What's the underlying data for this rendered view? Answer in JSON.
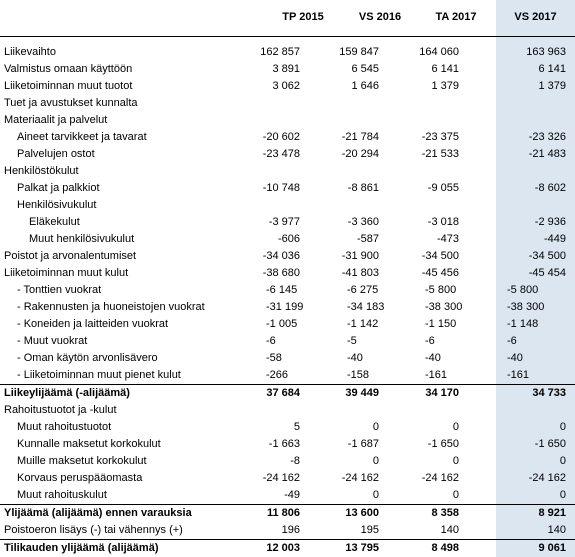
{
  "header": {
    "columns": [
      "TP 2015",
      "VS 2016",
      "TA 2017",
      "VS 2017"
    ]
  },
  "rows": [
    {
      "label": "Liikevaihto",
      "indent": 0,
      "bold": false,
      "values": [
        "162 857",
        "159 847",
        "164 060",
        "163 963"
      ]
    },
    {
      "label": "Valmistus omaan käyttöön",
      "indent": 0,
      "bold": false,
      "values": [
        "3 891",
        "6 545",
        "6 141",
        "6 141"
      ]
    },
    {
      "label": "Liiketoiminnan muut tuotot",
      "indent": 0,
      "bold": false,
      "values": [
        "3 062",
        "1 646",
        "1 379",
        "1 379"
      ]
    },
    {
      "label": "Tuet ja avustukset kunnalta",
      "indent": 0,
      "bold": false,
      "values": [
        "",
        "",
        "",
        ""
      ]
    },
    {
      "label": "Materiaalit ja palvelut",
      "indent": 0,
      "bold": false,
      "values": [
        "",
        "",
        "",
        ""
      ]
    },
    {
      "label": "Aineet tarvikkeet ja tavarat",
      "indent": 1,
      "bold": false,
      "values": [
        "-20 602",
        "-21 784",
        "-23 375",
        "-23 326"
      ]
    },
    {
      "label": "Palvelujen ostot",
      "indent": 1,
      "bold": false,
      "values": [
        "-23 478",
        "-20 294",
        "-21 533",
        "-21 483"
      ]
    },
    {
      "label": "Henkilöstökulut",
      "indent": 0,
      "bold": false,
      "values": [
        "",
        "",
        "",
        ""
      ]
    },
    {
      "label": "Palkat ja palkkiot",
      "indent": 1,
      "bold": false,
      "values": [
        "-10 748",
        "-8 861",
        "-9 055",
        "-8 602"
      ]
    },
    {
      "label": "Henkilösivukulut",
      "indent": 1,
      "bold": false,
      "values": [
        "",
        "",
        "",
        ""
      ]
    },
    {
      "label": "Eläkekulut",
      "indent": 2,
      "bold": false,
      "values": [
        "-3 977",
        "-3 360",
        "-3 018",
        "-2 936"
      ]
    },
    {
      "label": "Muut henkilösivukulut",
      "indent": 2,
      "bold": false,
      "values": [
        "-606",
        "-587",
        "-473",
        "-449"
      ]
    },
    {
      "label": "Poistot ja arvonalentumiset",
      "indent": 0,
      "bold": false,
      "values": [
        "-34 036",
        "-31 900",
        "-34 500",
        "-34 500"
      ]
    },
    {
      "label": "Liiketoiminnan muut kulut",
      "indent": 0,
      "bold": false,
      "values": [
        "-38 680",
        "-41 803",
        "-45 456",
        "-45 454"
      ]
    },
    {
      "label": "- Tonttien vuokrat",
      "indent": 1,
      "bold": false,
      "values": [
        "-6 145",
        "-6 275",
        "-5 800",
        "-5 800"
      ],
      "leftnum": true
    },
    {
      "label": "- Rakennusten ja huoneistojen vuokrat",
      "indent": 1,
      "bold": false,
      "values": [
        "-31 199",
        "-34 183",
        "-38 300",
        "-38 300"
      ],
      "leftnum": true
    },
    {
      "label": "- Koneiden ja laitteiden vuokrat",
      "indent": 1,
      "bold": false,
      "values": [
        "-1 005",
        "-1 142",
        "-1 150",
        "-1 148"
      ],
      "leftnum": true
    },
    {
      "label": "- Muut vuokrat",
      "indent": 1,
      "bold": false,
      "values": [
        "-6",
        "-5",
        "-6",
        "-6"
      ],
      "leftnum": true
    },
    {
      "label": "- Oman käytön arvonlisävero",
      "indent": 1,
      "bold": false,
      "values": [
        "-58",
        "-40",
        "-40",
        "-40"
      ],
      "leftnum": true
    },
    {
      "label": "- Liiketoiminnan muut pienet kulut",
      "indent": 1,
      "bold": false,
      "values": [
        "-266",
        "-158",
        "-161",
        "-161"
      ],
      "leftnum": true
    },
    {
      "label": "Liikeylijäämä (-alijäämä)",
      "indent": 0,
      "bold": true,
      "topline": true,
      "values": [
        "37 684",
        "39 449",
        "34 170",
        "34 733"
      ]
    },
    {
      "label": "Rahoitustuotot ja -kulut",
      "indent": 0,
      "bold": false,
      "values": [
        "",
        "",
        "",
        ""
      ]
    },
    {
      "label": "Muut rahoitustuotot",
      "indent": 1,
      "bold": false,
      "values": [
        "5",
        "0",
        "0",
        "0"
      ]
    },
    {
      "label": "Kunnalle maksetut korkokulut",
      "indent": 1,
      "bold": false,
      "values": [
        "-1 663",
        "-1 687",
        "-1 650",
        "-1 650"
      ]
    },
    {
      "label": "Muille maksetut korkokulut",
      "indent": 1,
      "bold": false,
      "values": [
        "-8",
        "0",
        "0",
        "0"
      ]
    },
    {
      "label": "Korvaus peruspääomasta",
      "indent": 1,
      "bold": false,
      "values": [
        "-24 162",
        "-24 162",
        "-24 162",
        "-24 162"
      ]
    },
    {
      "label": "Muut rahoituskulut",
      "indent": 1,
      "bold": false,
      "values": [
        "-49",
        "0",
        "0",
        "0"
      ]
    },
    {
      "label": "Ylijäämä (alijäämä) ennen varauksia",
      "indent": 0,
      "bold": true,
      "topline": true,
      "values": [
        "11 806",
        "13 600",
        "8 358",
        "8 921"
      ]
    },
    {
      "label": "Poistoeron lisäys (-) tai vähennys (+)",
      "indent": 0,
      "bold": false,
      "values": [
        "196",
        "195",
        "140",
        "140"
      ]
    },
    {
      "label": "Tilikauden ylijäämä (alijäämä)",
      "indent": 0,
      "bold": true,
      "topline": true,
      "values": [
        "12 003",
        "13 795",
        "8 498",
        "9 061"
      ]
    }
  ]
}
